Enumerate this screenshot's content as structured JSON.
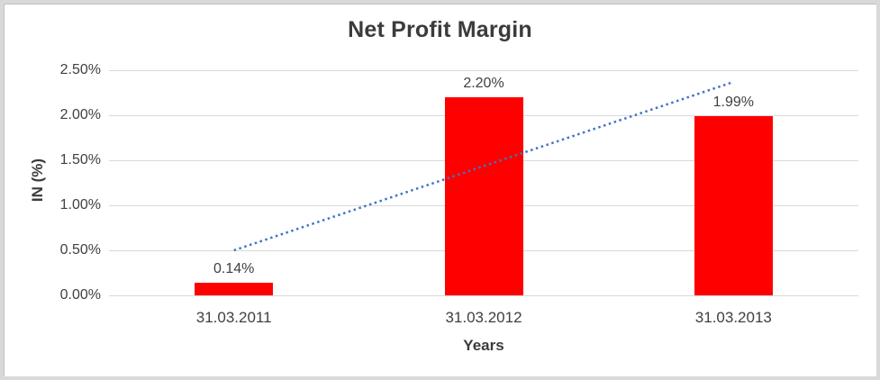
{
  "frame": {
    "border_color": "#d9d9d9",
    "hairline_color": "#c0c0c0",
    "background": "#ffffff"
  },
  "chart_data": {
    "type": "bar",
    "title": "Net Profit Margin",
    "xlabel": "Years",
    "ylabel": "IN (%)",
    "categories": [
      "31.03.2011",
      "31.03.2012",
      "31.03.2013"
    ],
    "values": [
      0.14,
      2.2,
      1.99
    ],
    "data_labels": [
      "0.14%",
      "2.20%",
      "1.99%"
    ],
    "yticks": [
      {
        "value": 0.0,
        "label": "0.00%"
      },
      {
        "value": 0.5,
        "label": "0.50%"
      },
      {
        "value": 1.0,
        "label": "1.00%"
      },
      {
        "value": 1.5,
        "label": "1.50%"
      },
      {
        "value": 2.0,
        "label": "2.00%"
      },
      {
        "value": 2.5,
        "label": "2.50%"
      }
    ],
    "ylim": [
      0,
      2.5
    ],
    "grid": true,
    "legend": "none",
    "bar_color": "#ff0000",
    "gridline_color": "#d9d9d9",
    "text_color": "#404040",
    "title_color": "#3b3b3b",
    "trendline": {
      "type": "linear",
      "style": "dotted",
      "color": "#4472c4",
      "start_category_index": 0,
      "end_category_index": 2,
      "start_value": 0.5,
      "end_value": 2.37
    }
  }
}
